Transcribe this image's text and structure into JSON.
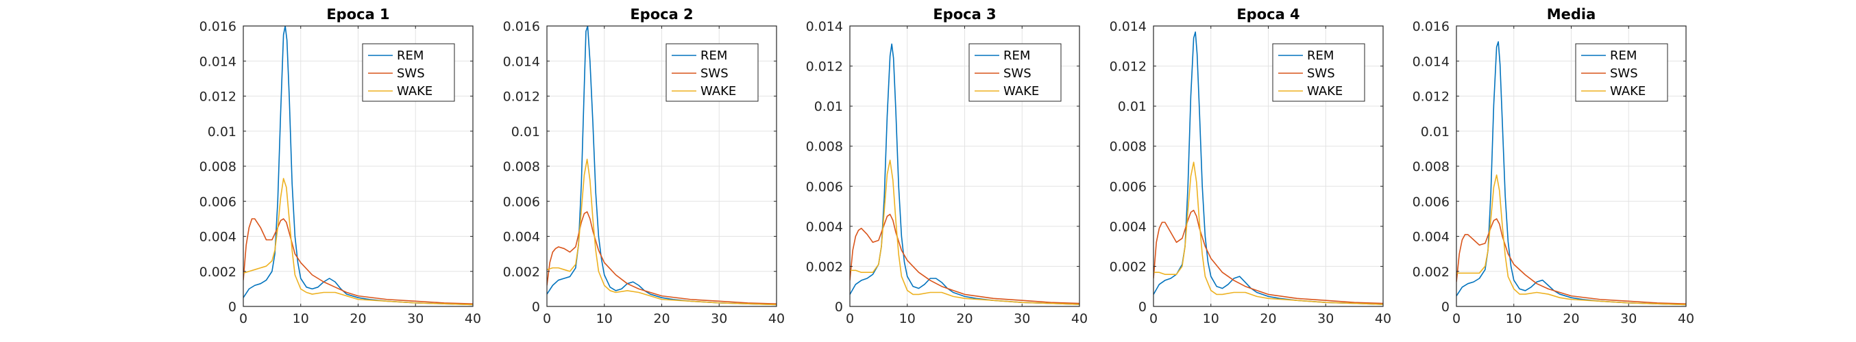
{
  "chart_data": [
    {
      "type": "line",
      "title": "Epoca 1",
      "xlabel": "",
      "ylabel": "",
      "xlim": [
        0,
        40
      ],
      "ylim": [
        0,
        0.016
      ],
      "xticks": [
        0,
        10,
        20,
        30,
        40
      ],
      "yticks": [
        0,
        0.002,
        0.004,
        0.006,
        0.008,
        0.01,
        0.012,
        0.014,
        0.016
      ],
      "ytick_labels": [
        "0",
        "0.002",
        "0.004",
        "0.006",
        "0.008",
        "0.01",
        "0.012",
        "0.014",
        "0.016"
      ],
      "grid": true,
      "legend": "top-right",
      "series": [
        {
          "name": "REM",
          "color": "#0072BD",
          "x": [
            0,
            1,
            2,
            3,
            4,
            5,
            5.5,
            6,
            6.5,
            7,
            7.3,
            7.6,
            8,
            8.5,
            9,
            9.5,
            10,
            11,
            12,
            13,
            14,
            15,
            16,
            17,
            18,
            20,
            22,
            25,
            30,
            35,
            40
          ],
          "y": [
            0.0005,
            0.001,
            0.0012,
            0.0013,
            0.0015,
            0.002,
            0.003,
            0.006,
            0.011,
            0.0155,
            0.016,
            0.0152,
            0.012,
            0.007,
            0.004,
            0.0025,
            0.0016,
            0.0011,
            0.001,
            0.0011,
            0.0014,
            0.0016,
            0.0014,
            0.001,
            0.0007,
            0.0005,
            0.0004,
            0.0003,
            0.0002,
            0.00015,
            0.0001
          ]
        },
        {
          "name": "SWS",
          "color": "#D95319",
          "x": [
            0,
            0.5,
            1,
            1.5,
            2,
            3,
            4,
            5,
            6,
            6.5,
            7,
            7.5,
            8,
            9,
            10,
            12,
            14,
            16,
            18,
            20,
            25,
            30,
            35,
            40
          ],
          "y": [
            0.0015,
            0.0035,
            0.0045,
            0.005,
            0.005,
            0.0045,
            0.0038,
            0.0038,
            0.0045,
            0.0049,
            0.005,
            0.0048,
            0.0042,
            0.003,
            0.0025,
            0.0018,
            0.0014,
            0.0011,
            0.0008,
            0.0006,
            0.0004,
            0.0003,
            0.0002,
            0.00015
          ]
        },
        {
          "name": "WAKE",
          "color": "#EDB120",
          "x": [
            0,
            1,
            2,
            3,
            4,
            5,
            5.5,
            6,
            6.5,
            7,
            7.5,
            8,
            8.5,
            9,
            10,
            11,
            12,
            14,
            16,
            18,
            20,
            25,
            30,
            35,
            40
          ],
          "y": [
            0.0019,
            0.002,
            0.0021,
            0.0022,
            0.0023,
            0.0026,
            0.0032,
            0.0045,
            0.0062,
            0.0073,
            0.0068,
            0.005,
            0.0032,
            0.0018,
            0.001,
            0.0008,
            0.0007,
            0.0008,
            0.0008,
            0.0006,
            0.0004,
            0.0003,
            0.0002,
            0.00015,
            0.0001
          ]
        }
      ]
    },
    {
      "type": "line",
      "title": "Epoca 2",
      "xlabel": "",
      "ylabel": "",
      "xlim": [
        0,
        40
      ],
      "ylim": [
        0,
        0.016
      ],
      "xticks": [
        0,
        10,
        20,
        30,
        40
      ],
      "yticks": [
        0,
        0.002,
        0.004,
        0.006,
        0.008,
        0.01,
        0.012,
        0.014,
        0.016
      ],
      "ytick_labels": [
        "0",
        "0.002",
        "0.004",
        "0.006",
        "0.008",
        "0.01",
        "0.012",
        "0.014",
        "0.016"
      ],
      "grid": true,
      "legend": "top-right",
      "series": [
        {
          "name": "REM",
          "color": "#0072BD",
          "x": [
            0,
            1,
            2,
            3,
            4,
            5,
            5.5,
            6,
            6.5,
            6.8,
            7.1,
            7.5,
            8,
            8.5,
            9,
            9.5,
            10,
            11,
            12,
            13,
            14,
            15,
            16,
            17,
            18,
            20,
            22,
            25,
            30,
            35,
            40
          ],
          "y": [
            0.0007,
            0.0012,
            0.0015,
            0.0016,
            0.0017,
            0.0022,
            0.0035,
            0.007,
            0.0125,
            0.0157,
            0.016,
            0.014,
            0.0105,
            0.0065,
            0.004,
            0.0027,
            0.0018,
            0.0011,
            0.0009,
            0.001,
            0.0013,
            0.0014,
            0.0012,
            0.0009,
            0.0007,
            0.0005,
            0.0004,
            0.0003,
            0.0002,
            0.00015,
            0.0001
          ]
        },
        {
          "name": "SWS",
          "color": "#D95319",
          "x": [
            0,
            0.5,
            1,
            1.5,
            2,
            3,
            4,
            5,
            6,
            6.5,
            7,
            7.5,
            8,
            9,
            10,
            12,
            14,
            16,
            18,
            20,
            25,
            30,
            35,
            40
          ],
          "y": [
            0.0012,
            0.0025,
            0.0031,
            0.0033,
            0.0034,
            0.0033,
            0.0031,
            0.0034,
            0.0048,
            0.0053,
            0.0054,
            0.005,
            0.0043,
            0.0032,
            0.0025,
            0.0018,
            0.0013,
            0.001,
            0.0008,
            0.0006,
            0.0004,
            0.0003,
            0.0002,
            0.00015
          ]
        },
        {
          "name": "WAKE",
          "color": "#EDB120",
          "x": [
            0,
            1,
            2,
            3,
            4,
            5,
            5.5,
            6,
            6.5,
            7,
            7.5,
            8,
            8.5,
            9,
            10,
            11,
            12,
            14,
            16,
            18,
            20,
            25,
            30,
            35,
            40
          ],
          "y": [
            0.0021,
            0.0022,
            0.0022,
            0.0021,
            0.002,
            0.0024,
            0.0035,
            0.0055,
            0.0075,
            0.0084,
            0.0072,
            0.005,
            0.0032,
            0.002,
            0.0012,
            0.0009,
            0.0008,
            0.0009,
            0.0008,
            0.0006,
            0.0004,
            0.0003,
            0.0002,
            0.00015,
            0.0001
          ]
        }
      ]
    },
    {
      "type": "line",
      "title": "Epoca 3",
      "xlabel": "",
      "ylabel": "",
      "xlim": [
        0,
        40
      ],
      "ylim": [
        0,
        0.014
      ],
      "xticks": [
        0,
        10,
        20,
        30,
        40
      ],
      "yticks": [
        0,
        0.002,
        0.004,
        0.006,
        0.008,
        0.01,
        0.012,
        0.014
      ],
      "ytick_labels": [
        "0",
        "0.002",
        "0.004",
        "0.006",
        "0.008",
        "0.01",
        "0.012",
        "0.014"
      ],
      "grid": true,
      "legend": "top-right",
      "series": [
        {
          "name": "REM",
          "color": "#0072BD",
          "x": [
            0,
            1,
            2,
            3,
            4,
            5,
            5.5,
            6,
            6.5,
            7,
            7.3,
            7.6,
            8,
            8.5,
            9,
            9.5,
            10,
            11,
            12,
            13,
            14,
            15,
            16,
            17,
            18,
            20,
            22,
            25,
            30,
            35,
            40
          ],
          "y": [
            0.0006,
            0.0011,
            0.0013,
            0.0014,
            0.0016,
            0.0021,
            0.003,
            0.0055,
            0.0095,
            0.0125,
            0.0131,
            0.0124,
            0.0098,
            0.006,
            0.0035,
            0.0022,
            0.0015,
            0.001,
            0.0009,
            0.0011,
            0.0014,
            0.0014,
            0.0012,
            0.0009,
            0.0007,
            0.0005,
            0.0004,
            0.0003,
            0.0002,
            0.00015,
            0.0001
          ]
        },
        {
          "name": "SWS",
          "color": "#D95319",
          "x": [
            0,
            0.5,
            1,
            1.5,
            2,
            3,
            4,
            5,
            6,
            6.5,
            7,
            7.5,
            8,
            9,
            10,
            12,
            14,
            16,
            18,
            20,
            25,
            30,
            35,
            40
          ],
          "y": [
            0.0013,
            0.0028,
            0.0035,
            0.0038,
            0.0039,
            0.0036,
            0.0032,
            0.0033,
            0.0041,
            0.0045,
            0.0046,
            0.0043,
            0.0037,
            0.0028,
            0.0023,
            0.0017,
            0.0013,
            0.001,
            0.0008,
            0.0006,
            0.0004,
            0.0003,
            0.0002,
            0.00015
          ]
        },
        {
          "name": "WAKE",
          "color": "#EDB120",
          "x": [
            0,
            1,
            2,
            3,
            4,
            5,
            5.5,
            6,
            6.5,
            7,
            7.5,
            8,
            8.5,
            9,
            10,
            11,
            12,
            14,
            16,
            18,
            20,
            25,
            30,
            35,
            40
          ],
          "y": [
            0.0018,
            0.0018,
            0.0017,
            0.0017,
            0.0017,
            0.0021,
            0.003,
            0.0048,
            0.0066,
            0.0073,
            0.0063,
            0.0043,
            0.0026,
            0.0015,
            0.0008,
            0.0006,
            0.0006,
            0.0007,
            0.0007,
            0.0005,
            0.0004,
            0.0003,
            0.0002,
            0.00015,
            0.0001
          ]
        }
      ]
    },
    {
      "type": "line",
      "title": "Epoca 4",
      "xlabel": "",
      "ylabel": "",
      "xlim": [
        0,
        40
      ],
      "ylim": [
        0,
        0.014
      ],
      "xticks": [
        0,
        10,
        20,
        30,
        40
      ],
      "yticks": [
        0,
        0.002,
        0.004,
        0.006,
        0.008,
        0.01,
        0.012,
        0.014
      ],
      "ytick_labels": [
        "0",
        "0.002",
        "0.004",
        "0.006",
        "0.008",
        "0.01",
        "0.012",
        "0.014"
      ],
      "grid": true,
      "legend": "top-right",
      "series": [
        {
          "name": "REM",
          "color": "#0072BD",
          "x": [
            0,
            1,
            2,
            3,
            4,
            5,
            5.5,
            6,
            6.5,
            7,
            7.3,
            7.6,
            8,
            8.5,
            9,
            9.5,
            10,
            11,
            12,
            13,
            14,
            15,
            16,
            17,
            18,
            20,
            22,
            25,
            30,
            35,
            40
          ],
          "y": [
            0.0006,
            0.0011,
            0.0013,
            0.0014,
            0.0016,
            0.0021,
            0.003,
            0.006,
            0.0105,
            0.0134,
            0.0137,
            0.0126,
            0.0098,
            0.006,
            0.0035,
            0.0022,
            0.0015,
            0.001,
            0.0009,
            0.0011,
            0.0014,
            0.0015,
            0.0012,
            0.0009,
            0.0007,
            0.0005,
            0.0004,
            0.0003,
            0.0002,
            0.00015,
            0.0001
          ]
        },
        {
          "name": "SWS",
          "color": "#D95319",
          "x": [
            0,
            0.5,
            1,
            1.5,
            2,
            3,
            4,
            5,
            6,
            6.5,
            7,
            7.5,
            8,
            9,
            10,
            12,
            14,
            16,
            18,
            20,
            25,
            30,
            35,
            40
          ],
          "y": [
            0.0014,
            0.0032,
            0.0039,
            0.0042,
            0.0042,
            0.0037,
            0.0032,
            0.0034,
            0.0043,
            0.0047,
            0.0048,
            0.0045,
            0.0039,
            0.003,
            0.0024,
            0.0017,
            0.0013,
            0.001,
            0.0008,
            0.0006,
            0.0004,
            0.0003,
            0.0002,
            0.00015
          ]
        },
        {
          "name": "WAKE",
          "color": "#EDB120",
          "x": [
            0,
            1,
            2,
            3,
            4,
            5,
            5.5,
            6,
            6.5,
            7,
            7.5,
            8,
            8.5,
            9,
            10,
            11,
            12,
            14,
            16,
            18,
            20,
            25,
            30,
            35,
            40
          ],
          "y": [
            0.0017,
            0.0017,
            0.0016,
            0.0016,
            0.0016,
            0.002,
            0.003,
            0.0048,
            0.0065,
            0.0072,
            0.0062,
            0.0042,
            0.0026,
            0.0015,
            0.0008,
            0.0006,
            0.0006,
            0.0007,
            0.0007,
            0.0005,
            0.0004,
            0.0003,
            0.0002,
            0.00015,
            0.0001
          ]
        }
      ]
    },
    {
      "type": "line",
      "title": "Media",
      "xlabel": "",
      "ylabel": "",
      "xlim": [
        0,
        40
      ],
      "ylim": [
        0,
        0.016
      ],
      "xticks": [
        0,
        10,
        20,
        30,
        40
      ],
      "yticks": [
        0,
        0.002,
        0.004,
        0.006,
        0.008,
        0.01,
        0.012,
        0.014,
        0.016
      ],
      "ytick_labels": [
        "0",
        "0.002",
        "0.004",
        "0.006",
        "0.008",
        "0.01",
        "0.012",
        "0.014",
        "0.016"
      ],
      "grid": true,
      "legend": "top-right",
      "series": [
        {
          "name": "REM",
          "color": "#0072BD",
          "x": [
            0,
            1,
            2,
            3,
            4,
            5,
            5.5,
            6,
            6.5,
            7,
            7.3,
            7.6,
            8,
            8.5,
            9,
            9.5,
            10,
            11,
            12,
            13,
            14,
            15,
            16,
            17,
            18,
            20,
            22,
            25,
            30,
            35,
            40
          ],
          "y": [
            0.0006,
            0.0011,
            0.0013,
            0.0014,
            0.0016,
            0.0021,
            0.0032,
            0.0065,
            0.0115,
            0.0148,
            0.0151,
            0.0138,
            0.0105,
            0.0063,
            0.0037,
            0.0023,
            0.0015,
            0.001,
            0.0009,
            0.0011,
            0.0014,
            0.0015,
            0.0012,
            0.0009,
            0.0007,
            0.0005,
            0.0004,
            0.0003,
            0.0002,
            0.00015,
            0.0001
          ]
        },
        {
          "name": "SWS",
          "color": "#D95319",
          "x": [
            0,
            0.5,
            1,
            1.5,
            2,
            3,
            4,
            5,
            6,
            6.5,
            7,
            7.5,
            8,
            9,
            10,
            12,
            14,
            16,
            18,
            20,
            25,
            30,
            35,
            40
          ],
          "y": [
            0.0014,
            0.003,
            0.0038,
            0.0041,
            0.0041,
            0.0038,
            0.0035,
            0.0036,
            0.0045,
            0.0049,
            0.005,
            0.0047,
            0.004,
            0.003,
            0.0024,
            0.0018,
            0.0013,
            0.001,
            0.0008,
            0.0006,
            0.0004,
            0.0003,
            0.0002,
            0.00015
          ]
        },
        {
          "name": "WAKE",
          "color": "#EDB120",
          "x": [
            0,
            1,
            2,
            3,
            4,
            5,
            5.5,
            6,
            6.5,
            7,
            7.5,
            8,
            8.5,
            9,
            10,
            11,
            12,
            14,
            16,
            18,
            20,
            25,
            30,
            35,
            40
          ],
          "y": [
            0.0019,
            0.0019,
            0.0019,
            0.0019,
            0.0019,
            0.0023,
            0.0032,
            0.005,
            0.0068,
            0.0075,
            0.0066,
            0.0046,
            0.0029,
            0.0017,
            0.001,
            0.0007,
            0.0007,
            0.0008,
            0.0007,
            0.0005,
            0.0004,
            0.0003,
            0.0002,
            0.00015,
            0.0001
          ]
        }
      ]
    }
  ]
}
